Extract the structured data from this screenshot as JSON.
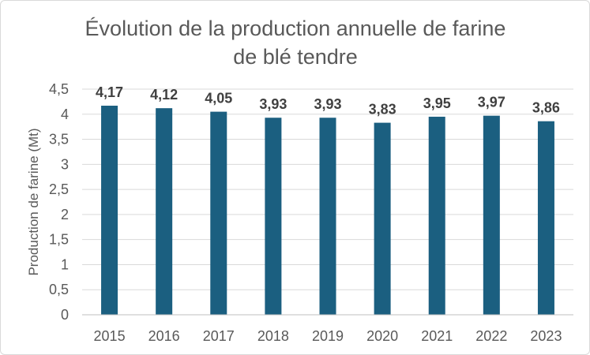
{
  "chart_data": {
    "type": "bar",
    "title_lines": [
      "Évolution de la production annuelle de farine",
      "de blé tendre"
    ],
    "xlabel": "",
    "ylabel": "Production de farine (Mt)",
    "categories": [
      "2015",
      "2016",
      "2017",
      "2018",
      "2019",
      "2020",
      "2021",
      "2022",
      "2023"
    ],
    "values": [
      4.17,
      4.12,
      4.05,
      3.93,
      3.93,
      3.83,
      3.95,
      3.97,
      3.86
    ],
    "data_labels": [
      "4,17",
      "4,12",
      "4,05",
      "3,93",
      "3,93",
      "3,83",
      "3,95",
      "3,97",
      "3,86"
    ],
    "yticks": [
      0,
      0.5,
      1,
      1.5,
      2,
      2.5,
      3,
      3.5,
      4,
      4.5
    ],
    "ytick_labels": [
      "0",
      "0,5",
      "1",
      "1,5",
      "2",
      "2,5",
      "3",
      "3,5",
      "4",
      "4,5"
    ],
    "ylim": [
      0,
      4.5
    ],
    "grid": true,
    "legend": "none",
    "bar_color": "#1b5f80"
  }
}
